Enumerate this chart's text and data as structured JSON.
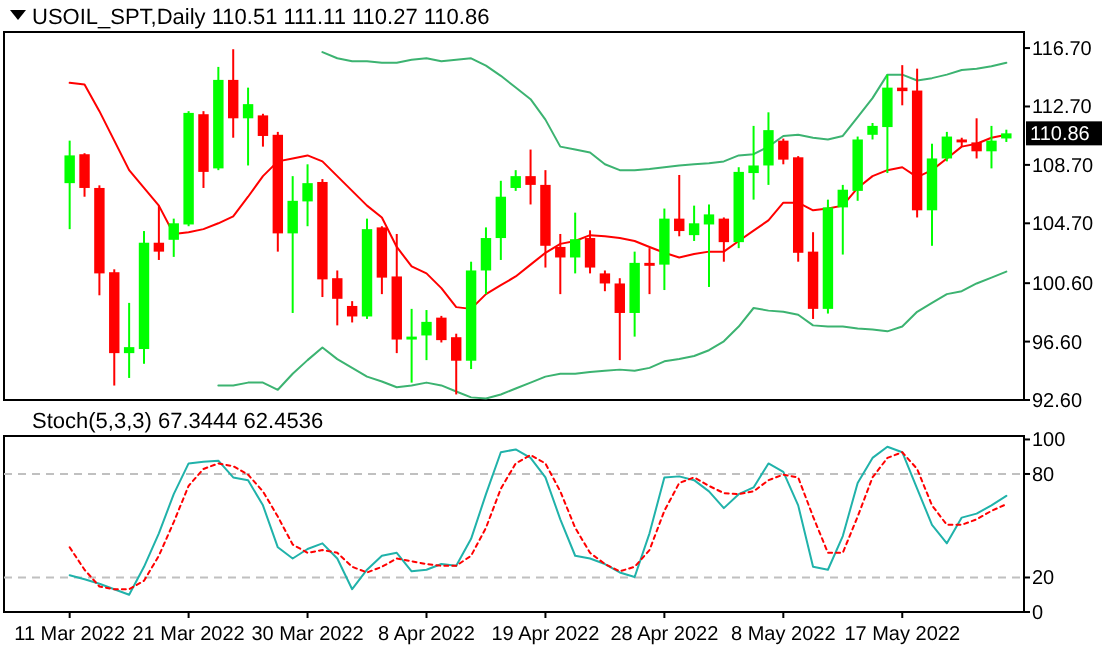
{
  "chart_data": [
    {
      "type": "candlestick",
      "title": "USOIL_SPT,Daily 110.51 111.11 110.27 110.86",
      "tick_labels": "y",
      "categories": [
        null,
        null,
        null,
        null,
        null,
        null,
        null,
        null,
        null,
        null,
        null,
        null,
        null,
        null,
        null,
        null,
        null,
        null,
        null,
        null,
        null,
        null,
        null,
        null,
        null,
        null,
        null,
        null,
        null,
        null,
        null,
        null,
        null,
        null,
        null,
        null,
        null,
        null,
        null,
        null,
        null,
        null,
        null,
        null,
        null,
        null,
        null,
        null,
        null,
        null,
        null,
        null,
        null,
        null,
        null,
        null,
        null,
        null,
        null,
        null,
        null,
        null,
        null,
        null
      ],
      "ohlc": [
        [
          107.45,
          110.36,
          104.3,
          109.35
        ],
        [
          109.43,
          109.5,
          106.52,
          107.12
        ],
        [
          107.12,
          107.3,
          99.77,
          101.27
        ],
        [
          101.35,
          101.55,
          93.59,
          95.81
        ],
        [
          95.81,
          99.25,
          94.11,
          96.22
        ],
        [
          96.09,
          104.17,
          95.08,
          103.37
        ],
        [
          103.37,
          105.91,
          102.19,
          102.76
        ],
        [
          103.57,
          105.02,
          102.4,
          104.7
        ],
        [
          104.62,
          112.38,
          104.5,
          112.26
        ],
        [
          112.17,
          112.38,
          107.12,
          108.22
        ],
        [
          108.46,
          115.41,
          108.34,
          114.52
        ],
        [
          114.52,
          116.62,
          110.56,
          111.89
        ],
        [
          111.89,
          113.99,
          108.66,
          112.86
        ],
        [
          112.09,
          112.2,
          109.95,
          110.68
        ],
        [
          110.76,
          110.96,
          102.76,
          104.01
        ],
        [
          104.01,
          107.93,
          98.56,
          106.24
        ],
        [
          106.2,
          108.74,
          104.5,
          107.45
        ],
        [
          107.53,
          107.73,
          99.65,
          100.86
        ],
        [
          100.94,
          101.47,
          97.71,
          99.53
        ],
        [
          99.04,
          99.37,
          97.91,
          98.32
        ],
        [
          98.32,
          105.02,
          98.15,
          104.3
        ],
        [
          104.42,
          104.5,
          99.85,
          100.98
        ],
        [
          101.06,
          103.97,
          95.81,
          96.74
        ],
        [
          96.74,
          98.84,
          93.79,
          96.94
        ],
        [
          97.02,
          98.76,
          95.33,
          97.95
        ],
        [
          98.24,
          98.36,
          96.54,
          96.7
        ],
        [
          96.9,
          97.14,
          92.98,
          95.29
        ],
        [
          95.29,
          102.07,
          94.72,
          101.47
        ],
        [
          101.47,
          104.42,
          99.85,
          103.69
        ],
        [
          103.69,
          107.61,
          102.19,
          106.52
        ],
        [
          107.12,
          108.34,
          106.92,
          107.93
        ],
        [
          107.93,
          109.75,
          105.99,
          107.33
        ],
        [
          107.33,
          108.34,
          101.67,
          103.16
        ],
        [
          103.08,
          103.97,
          99.85,
          102.36
        ],
        [
          102.36,
          105.43,
          101.27,
          103.61
        ],
        [
          103.69,
          104.22,
          101.27,
          101.67
        ],
        [
          101.27,
          101.47,
          100.05,
          100.58
        ],
        [
          100.58,
          100.94,
          95.33,
          98.56
        ],
        [
          98.56,
          102.76,
          96.94,
          101.99
        ],
        [
          101.99,
          103.0,
          99.85,
          101.79
        ],
        [
          101.87,
          105.71,
          100.13,
          105.02
        ],
        [
          105.02,
          108.01,
          103.81,
          104.17
        ],
        [
          103.89,
          105.91,
          103.49,
          104.7
        ],
        [
          104.62,
          105.99,
          100.34,
          105.31
        ],
        [
          105.02,
          105.1,
          102.07,
          103.41
        ],
        [
          103.41,
          108.54,
          103.0,
          108.22
        ],
        [
          108.14,
          111.37,
          106.32,
          108.66
        ],
        [
          108.66,
          112.3,
          107.33,
          111.08
        ],
        [
          110.36,
          110.5,
          108.74,
          109.06
        ],
        [
          109.22,
          109.3,
          102.07,
          102.68
        ],
        [
          102.76,
          104.09,
          98.15,
          98.84
        ],
        [
          98.84,
          106.32,
          98.52,
          105.79
        ],
        [
          105.79,
          107.33,
          102.56,
          107.0
        ],
        [
          106.92,
          110.64,
          106.24,
          110.44
        ],
        [
          110.76,
          111.57,
          110.44,
          111.37
        ],
        [
          111.29,
          114.88,
          108.14,
          113.99
        ],
        [
          113.99,
          115.53,
          112.78,
          113.75
        ],
        [
          113.79,
          115.29,
          105.1,
          105.59
        ],
        [
          105.59,
          110.15,
          103.16,
          109.14
        ],
        [
          109.14,
          110.96,
          108.94,
          110.64
        ],
        [
          110.44,
          110.56,
          109.95,
          110.24
        ],
        [
          110.24,
          111.89,
          109.14,
          109.63
        ],
        [
          109.63,
          111.37,
          108.46,
          110.36
        ],
        [
          110.51,
          111.11,
          110.27,
          110.86
        ]
      ],
      "colors": [
        "#00ff00",
        "#ff0000",
        "#ff0000",
        "#ff0000",
        "#00ff00",
        "#00ff00",
        "#ff0000",
        "#00ff00",
        "#00ff00",
        "#ff0000",
        "#00ff00",
        "#ff0000",
        "#00ff00",
        "#ff0000",
        "#ff0000",
        "#00ff00",
        "#00ff00",
        "#ff0000",
        "#ff0000",
        "#ff0000",
        "#00ff00",
        "#ff0000",
        "#ff0000",
        "#00ff00",
        "#00ff00",
        "#ff0000",
        "#ff0000",
        "#00ff00",
        "#00ff00",
        "#00ff00",
        "#00ff00",
        "#ff0000",
        "#ff0000",
        "#ff0000",
        "#00ff00",
        "#ff0000",
        "#ff0000",
        "#ff0000",
        "#00ff00",
        "#ff0000",
        "#00ff00",
        "#ff0000",
        "#00ff00",
        "#00ff00",
        "#ff0000",
        "#00ff00",
        "#00ff00",
        "#00ff00",
        "#ff0000",
        "#ff0000",
        "#ff0000",
        "#00ff00",
        "#00ff00",
        "#00ff00",
        "#00ff00",
        "#00ff00",
        "#ff0000",
        "#ff0000",
        "#00ff00",
        "#00ff00",
        "#ff0000",
        "#ff0000",
        "#00ff00",
        "#00ff00"
      ],
      "series": [
        {
          "type": "line",
          "color": "#3cb371",
          "values": [
            null,
            null,
            null,
            null,
            null,
            null,
            null,
            null,
            null,
            null,
            null,
            null,
            null,
            null,
            null,
            null,
            null,
            116.42,
            116.0,
            115.8,
            115.8,
            115.7,
            115.7,
            115.9,
            116.0,
            115.8,
            115.9,
            116.0,
            115.5,
            114.8,
            114.0,
            113.2,
            111.8,
            109.95,
            109.75,
            109.55,
            108.74,
            108.34,
            108.34,
            108.42,
            108.54,
            108.66,
            108.74,
            108.82,
            108.94,
            109.35,
            109.43,
            109.95,
            110.68,
            110.76,
            110.56,
            110.44,
            110.68,
            111.97,
            113.27,
            114.88,
            114.88,
            114.48,
            114.64,
            114.88,
            115.2,
            115.29,
            115.45,
            115.69
          ]
        },
        {
          "type": "line",
          "color": "#ff0000",
          "values": [
            114.32,
            114.2,
            112.38,
            110.36,
            108.34,
            107.12,
            105.91,
            103.97,
            104.09,
            104.3,
            104.7,
            105.18,
            106.52,
            107.93,
            108.94,
            109.14,
            109.35,
            108.94,
            107.93,
            106.92,
            105.91,
            105.1,
            103.08,
            101.75,
            101.27,
            100.26,
            98.96,
            98.84,
            99.85,
            100.46,
            101.06,
            101.87,
            102.68,
            103.29,
            103.49,
            103.89,
            103.81,
            103.69,
            103.49,
            103.08,
            102.68,
            102.36,
            102.6,
            102.76,
            102.76,
            103.49,
            104.2,
            104.9,
            106.11,
            106.11,
            105.59,
            105.71,
            105.91,
            107.12,
            107.93,
            108.34,
            108.54,
            107.86,
            108.34,
            109.14,
            109.95,
            110.15,
            110.56,
            110.76
          ]
        },
        {
          "type": "line",
          "color": "#3cb371",
          "values": [
            null,
            null,
            null,
            null,
            null,
            null,
            null,
            null,
            null,
            null,
            93.59,
            93.6,
            93.79,
            93.79,
            93.3,
            94.4,
            95.33,
            96.2,
            95.4,
            94.8,
            94.2,
            93.87,
            93.47,
            93.59,
            93.79,
            93.6,
            93.18,
            92.78,
            92.7,
            92.98,
            93.39,
            93.79,
            94.2,
            94.4,
            94.4,
            94.52,
            94.6,
            94.68,
            94.6,
            94.8,
            95.25,
            95.41,
            95.61,
            96.01,
            96.62,
            97.63,
            98.9,
            98.72,
            98.64,
            98.44,
            97.71,
            97.63,
            97.63,
            97.5,
            97.42,
            97.3,
            97.63,
            98.64,
            99.25,
            99.85,
            100.05,
            100.58,
            100.98,
            101.39
          ]
        }
      ],
      "ylim": [
        92.6,
        117.8
      ],
      "yticks": [
        {
          "value": 92.6,
          "label": "92.60"
        },
        {
          "value": 96.6,
          "label": "96.60"
        },
        {
          "value": 100.6,
          "label": "100.60"
        },
        {
          "value": 104.7,
          "label": "104.70"
        },
        {
          "value": 108.7,
          "label": "108.70"
        },
        {
          "value": 112.7,
          "label": "112.70"
        },
        {
          "value": 116.7,
          "label": "116.70"
        }
      ],
      "annotations": [
        "110.86"
      ]
    },
    {
      "type": "line",
      "title": "Stoch(5,3,3) 67.3444 62.4536",
      "categories": [
        "11 Mar 2022",
        null,
        null,
        null,
        null,
        null,
        null,
        null,
        "21 Mar 2022",
        null,
        null,
        null,
        null,
        null,
        null,
        null,
        "30 Mar 2022",
        null,
        null,
        null,
        null,
        null,
        null,
        null,
        "8 Apr 2022",
        null,
        null,
        null,
        null,
        null,
        null,
        null,
        "19 Apr 2022",
        null,
        null,
        null,
        null,
        null,
        null,
        null,
        "28 Apr 2022",
        null,
        null,
        null,
        null,
        null,
        null,
        null,
        "8 May 2022",
        null,
        null,
        null,
        null,
        null,
        null,
        null,
        "17 May 2022",
        null,
        null,
        null,
        null,
        null,
        null,
        null
      ],
      "series": [
        {
          "color": "#20b2aa",
          "line_style": "solid",
          "values": [
            21.3,
            19.0,
            16.4,
            13.2,
            10.0,
            26.2,
            45.6,
            68.3,
            86.1,
            87.1,
            87.7,
            78,
            76.4,
            61.8,
            37.5,
            31.0,
            36.5,
            39.8,
            31.0,
            13.2,
            24.5,
            32.6,
            34.3,
            23.6,
            24.5,
            27.8,
            26.8,
            42.4,
            68.3,
            92.6,
            94.2,
            89.3,
            78,
            53.7,
            32.6,
            31.0,
            27.8,
            22.9,
            20.3,
            45.6,
            78,
            78.6,
            76.4,
            69.9,
            60.2,
            68.3,
            72.2,
            86.1,
            81.2,
            61.8,
            26.2,
            24.5,
            44.0,
            74.8,
            89.3,
            95.8,
            92.6,
            71.5,
            50.5,
            39.8,
            54.7,
            57.0,
            61.8,
            67.3
          ]
        },
        {
          "color": "#ff0000",
          "line_style": "dotted",
          "values": [
            37.5,
            24.5,
            14.8,
            13.2,
            13.2,
            18.1,
            32.6,
            52.1,
            73.1,
            82.9,
            86.1,
            84.5,
            79.6,
            69.9,
            55.3,
            39.1,
            34.3,
            35.9,
            34.3,
            26.2,
            22.9,
            26.2,
            31.0,
            29.4,
            27.8,
            26.8,
            26.8,
            32.6,
            48.8,
            71.5,
            86.1,
            91.0,
            86.1,
            69.9,
            48.8,
            34.3,
            27.8,
            23.6,
            26.2,
            35.9,
            58.6,
            74.8,
            78,
            73.1,
            68.9,
            68.3,
            69.9,
            76.4,
            79.6,
            78,
            55.3,
            34.3,
            34.3,
            55.3,
            78,
            89.3,
            92.6,
            82.9,
            61.8,
            50.5,
            50.5,
            53.7,
            58.6,
            62.5
          ]
        }
      ],
      "ylim": [
        0,
        102
      ],
      "yticks": [
        0,
        20,
        80,
        100
      ],
      "ref_lines": [
        {
          "axis": "y",
          "value": 20,
          "color": "#c0c0c0",
          "line_style": "dashed"
        },
        {
          "axis": "y",
          "value": 80,
          "color": "#c0c0c0",
          "line_style": "dashed"
        }
      ]
    }
  ]
}
